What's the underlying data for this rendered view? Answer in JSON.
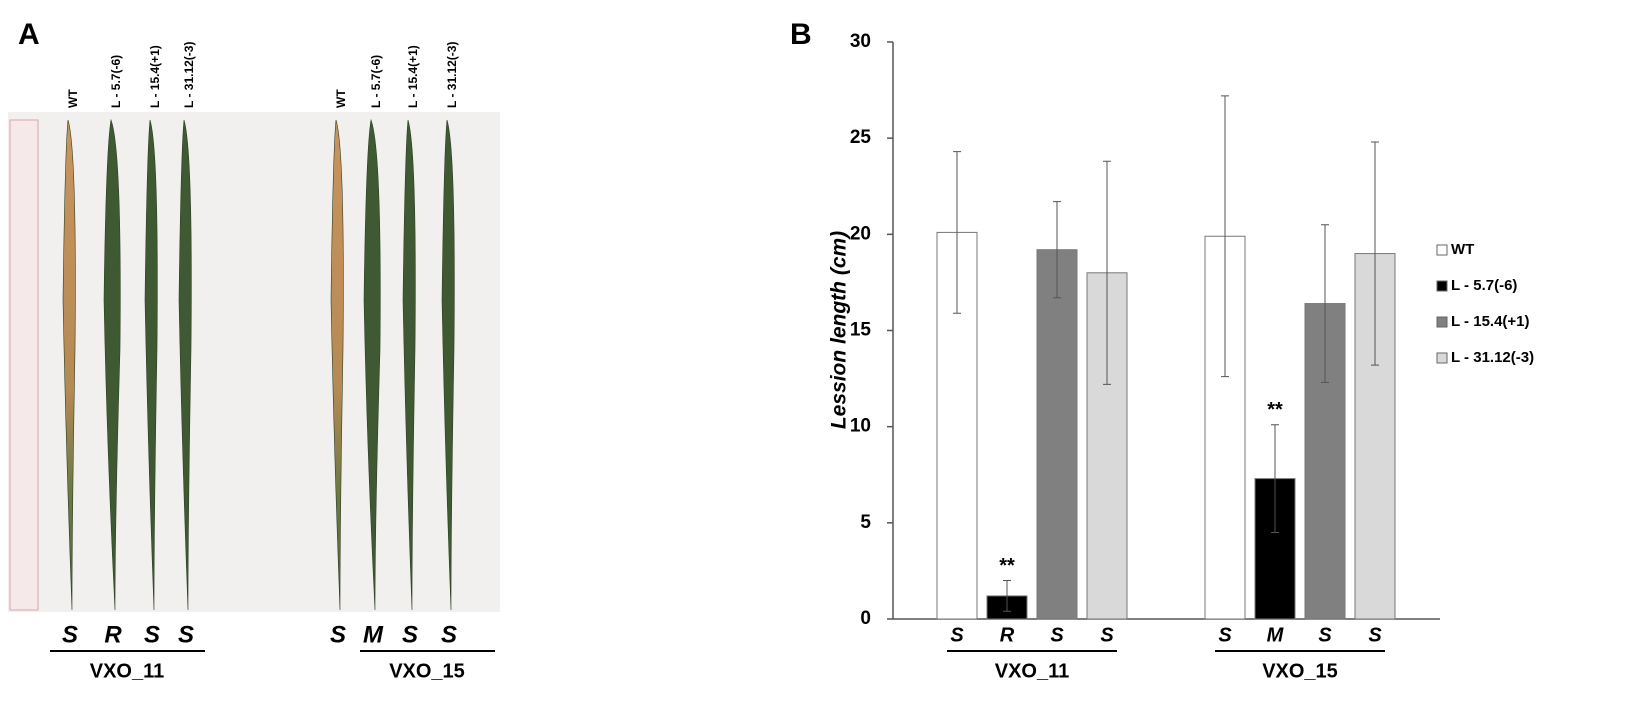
{
  "panel_a": {
    "label": "A",
    "groups": [
      {
        "name": "VXO_11",
        "leaves": [
          {
            "label": "WT",
            "phenotype": "S"
          },
          {
            "label": "L - 5.7(-6)",
            "phenotype": "R"
          },
          {
            "label": "L - 15.4(+1)",
            "phenotype": "S"
          },
          {
            "label": "L - 31.12(-3)",
            "phenotype": "S"
          }
        ]
      },
      {
        "name": "VXO_15",
        "leaves": [
          {
            "label": "WT",
            "phenotype": "S"
          },
          {
            "label": "L - 5.7(-6)",
            "phenotype": "M"
          },
          {
            "label": "L - 15.4(+1)",
            "phenotype": "S"
          },
          {
            "label": "L - 31.12(-3)",
            "phenotype": "S"
          }
        ]
      }
    ]
  },
  "chart_data": {
    "type": "bar",
    "panel_label": "B",
    "y_label": "Lession length (cm)",
    "categories": [
      "VXO_11",
      "VXO_15"
    ],
    "series": [
      {
        "name": "WT",
        "color": "#ffffff",
        "values": [
          20.1,
          19.9
        ],
        "errors": [
          4.2,
          7.3
        ],
        "phenotypes": [
          "S",
          "S"
        ]
      },
      {
        "name": "L - 5.7(-6)",
        "color": "#000000",
        "values": [
          1.2,
          7.3
        ],
        "errors": [
          0.8,
          2.8
        ],
        "phenotypes": [
          "R",
          "M"
        ],
        "annotations": [
          "**",
          "**"
        ]
      },
      {
        "name": "L - 15.4(+1)",
        "color": "#808080",
        "values": [
          19.2,
          16.4
        ],
        "errors": [
          2.5,
          4.1
        ],
        "phenotypes": [
          "S",
          "S"
        ]
      },
      {
        "name": "L - 31.12(-3)",
        "color": "#d9d9d9",
        "values": [
          18.0,
          19.0
        ],
        "errors": [
          5.8,
          5.8
        ],
        "phenotypes": [
          "S",
          "S"
        ]
      }
    ],
    "ylim": [
      0,
      30
    ],
    "yticks": [
      0,
      5,
      10,
      15,
      20,
      25,
      30
    ],
    "grid": false,
    "legend": "right"
  }
}
